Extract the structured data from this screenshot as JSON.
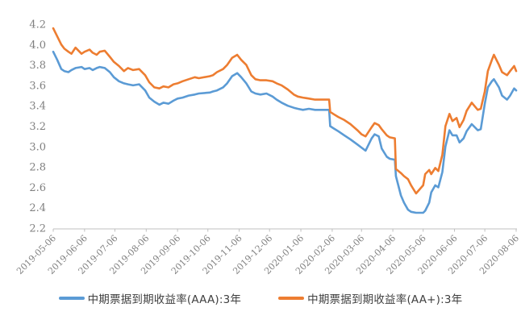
{
  "chart_data": {
    "type": "line",
    "title": "",
    "xlabel": "",
    "ylabel": "",
    "grid": false,
    "legend_position": "bottom",
    "ylim": [
      2.2,
      4.2
    ],
    "yticks": [
      "4.2",
      "4.0",
      "3.8",
      "3.6",
      "3.4",
      "3.2",
      "3.0",
      "2.8",
      "2.6",
      "2.4",
      "2.2"
    ],
    "x_range": [
      "2019-05-06",
      "2020-08-06"
    ],
    "xticks": [
      "2019-05-06",
      "2019-06-06",
      "2019-07-06",
      "2019-08-06",
      "2019-09-06",
      "2019-10-06",
      "2019-11-06",
      "2019-12-06",
      "2020-01-06",
      "2020-02-06",
      "2020-03-06",
      "2020-04-06",
      "2020-05-06",
      "2020-06-06",
      "2020-07-06",
      "2020-08-06"
    ],
    "x": [
      "2019-05-06",
      "2019-05-10",
      "2019-05-14",
      "2019-05-17",
      "2019-05-21",
      "2019-05-24",
      "2019-05-28",
      "2019-06-03",
      "2019-06-06",
      "2019-06-11",
      "2019-06-14",
      "2019-06-18",
      "2019-06-21",
      "2019-06-26",
      "2019-07-01",
      "2019-07-05",
      "2019-07-10",
      "2019-07-15",
      "2019-07-19",
      "2019-07-24",
      "2019-07-30",
      "2019-08-05",
      "2019-08-09",
      "2019-08-14",
      "2019-08-19",
      "2019-08-23",
      "2019-08-28",
      "2019-09-02",
      "2019-09-06",
      "2019-09-11",
      "2019-09-17",
      "2019-09-23",
      "2019-09-27",
      "2019-10-08",
      "2019-10-11",
      "2019-10-15",
      "2019-10-21",
      "2019-10-25",
      "2019-10-30",
      "2019-11-04",
      "2019-11-08",
      "2019-11-13",
      "2019-11-18",
      "2019-11-22",
      "2019-11-27",
      "2019-12-03",
      "2019-12-09",
      "2019-12-13",
      "2019-12-18",
      "2019-12-24",
      "2019-12-30",
      "2020-01-03",
      "2020-01-08",
      "2020-01-14",
      "2020-01-20",
      "2020-01-23",
      "2020-02-03",
      "2020-02-04",
      "2020-02-07",
      "2020-02-12",
      "2020-02-18",
      "2020-02-24",
      "2020-03-02",
      "2020-03-06",
      "2020-03-10",
      "2020-03-16",
      "2020-03-19",
      "2020-03-23",
      "2020-03-26",
      "2020-03-31",
      "2020-04-03",
      "2020-04-08",
      "2020-04-09",
      "2020-04-14",
      "2020-04-17",
      "2020-04-21",
      "2020-04-24",
      "2020-04-29",
      "2020-05-06",
      "2020-05-08",
      "2020-05-12",
      "2020-05-14",
      "2020-05-18",
      "2020-05-21",
      "2020-05-25",
      "2020-05-28",
      "2020-06-01",
      "2020-06-04",
      "2020-06-08",
      "2020-06-11",
      "2020-06-15",
      "2020-06-18",
      "2020-06-23",
      "2020-06-29",
      "2020-07-02",
      "2020-07-06",
      "2020-07-09",
      "2020-07-13",
      "2020-07-15",
      "2020-07-20",
      "2020-07-23",
      "2020-07-28",
      "2020-07-31",
      "2020-08-04",
      "2020-08-06"
    ],
    "series": [
      {
        "name": "中期票据到期收益率(AAA):3年",
        "color": "#5B9BD5",
        "values": [
          3.93,
          3.85,
          3.76,
          3.74,
          3.73,
          3.75,
          3.77,
          3.78,
          3.76,
          3.77,
          3.75,
          3.77,
          3.78,
          3.77,
          3.73,
          3.68,
          3.64,
          3.62,
          3.61,
          3.6,
          3.61,
          3.55,
          3.48,
          3.44,
          3.41,
          3.43,
          3.42,
          3.45,
          3.47,
          3.48,
          3.5,
          3.51,
          3.52,
          3.53,
          3.54,
          3.55,
          3.58,
          3.62,
          3.69,
          3.72,
          3.68,
          3.62,
          3.54,
          3.52,
          3.51,
          3.52,
          3.49,
          3.46,
          3.43,
          3.4,
          3.38,
          3.37,
          3.36,
          3.37,
          3.36,
          3.36,
          3.36,
          3.2,
          3.18,
          3.15,
          3.11,
          3.07,
          3.02,
          2.99,
          2.96,
          3.08,
          3.12,
          3.1,
          2.98,
          2.9,
          2.88,
          2.87,
          2.71,
          2.52,
          2.45,
          2.38,
          2.36,
          2.35,
          2.35,
          2.37,
          2.45,
          2.55,
          2.62,
          2.6,
          2.75,
          3.0,
          3.16,
          3.11,
          3.11,
          3.04,
          3.08,
          3.15,
          3.22,
          3.16,
          3.17,
          3.42,
          3.58,
          3.64,
          3.66,
          3.58,
          3.5,
          3.46,
          3.5,
          3.57,
          3.55
        ]
      },
      {
        "name": "中期票据到期收益率(AA+):3年",
        "color": "#ED7D31",
        "values": [
          4.16,
          4.08,
          4.0,
          3.96,
          3.93,
          3.91,
          3.97,
          3.91,
          3.93,
          3.95,
          3.92,
          3.9,
          3.93,
          3.94,
          3.88,
          3.83,
          3.79,
          3.74,
          3.77,
          3.75,
          3.76,
          3.7,
          3.63,
          3.58,
          3.57,
          3.59,
          3.58,
          3.61,
          3.62,
          3.64,
          3.66,
          3.68,
          3.67,
          3.69,
          3.7,
          3.73,
          3.76,
          3.8,
          3.87,
          3.9,
          3.85,
          3.8,
          3.7,
          3.66,
          3.65,
          3.65,
          3.64,
          3.62,
          3.6,
          3.56,
          3.51,
          3.49,
          3.48,
          3.47,
          3.46,
          3.46,
          3.46,
          3.34,
          3.32,
          3.29,
          3.26,
          3.22,
          3.16,
          3.12,
          3.1,
          3.19,
          3.23,
          3.21,
          3.17,
          3.11,
          3.09,
          3.08,
          2.78,
          2.74,
          2.71,
          2.68,
          2.62,
          2.54,
          2.62,
          2.73,
          2.77,
          2.73,
          2.79,
          2.76,
          2.92,
          3.2,
          3.32,
          3.25,
          3.28,
          3.19,
          3.26,
          3.35,
          3.43,
          3.36,
          3.37,
          3.54,
          3.74,
          3.85,
          3.9,
          3.8,
          3.73,
          3.7,
          3.74,
          3.79,
          3.74
        ]
      }
    ],
    "colors": {
      "axis_line": "#BFBFBF",
      "tick_label": "#7F7F7F",
      "legend_text": "#404040"
    }
  }
}
